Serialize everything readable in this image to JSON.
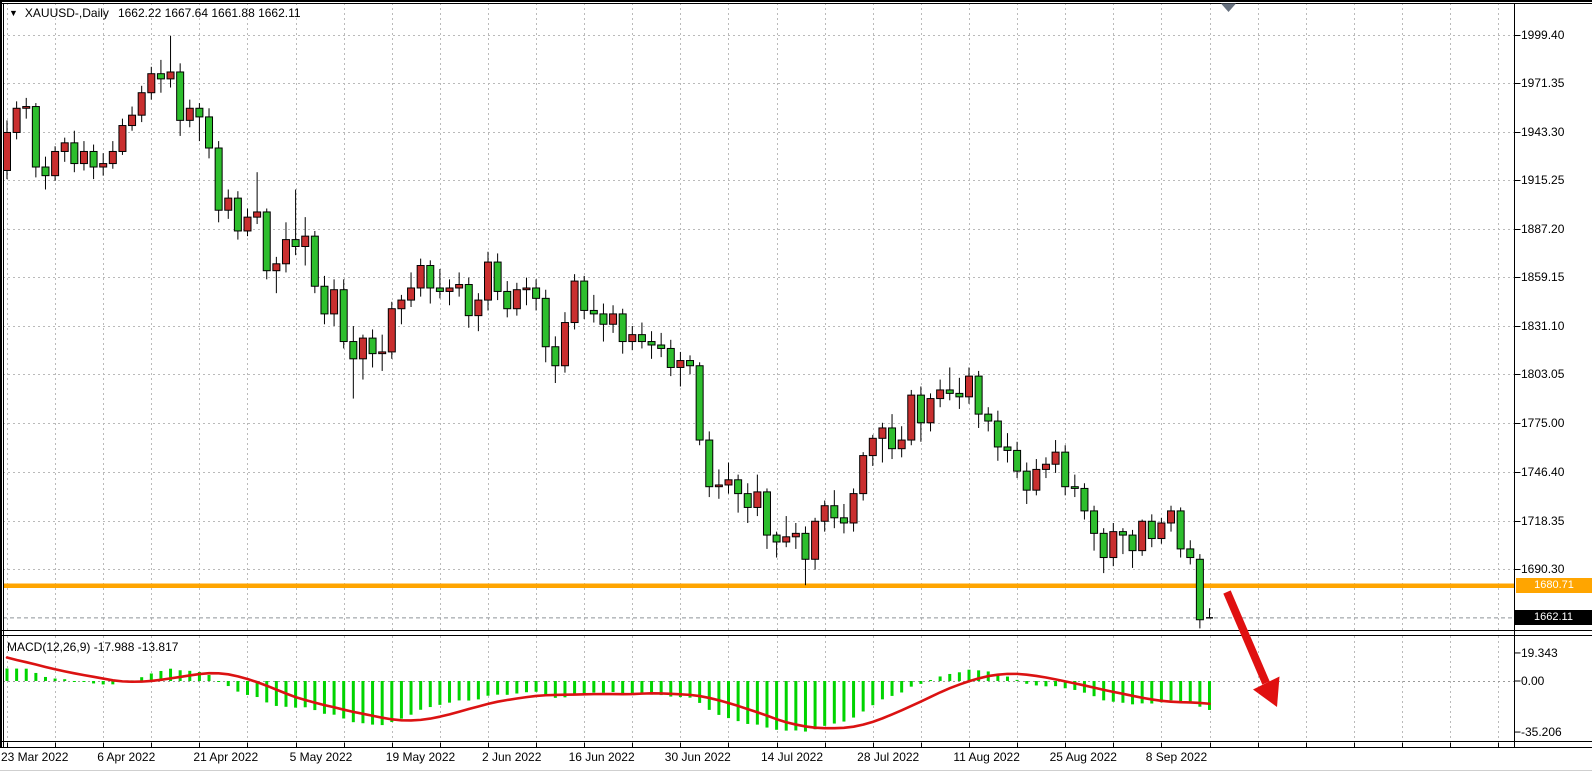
{
  "header": {
    "dropdown_icon": "▼",
    "symbol": "XAUUSD-,Daily",
    "ohlc": "1662.22 1667.64 1661.88 1662.11"
  },
  "price_axis": {
    "labels": [
      "1999.40",
      "1971.35",
      "1943.30",
      "1915.25",
      "1887.20",
      "1859.15",
      "1831.10",
      "1803.05",
      "1775.00",
      "1746.40",
      "1718.35",
      "1690.30"
    ],
    "support_tag": {
      "value": "1680.71",
      "bg": "#FFA500"
    },
    "last_price_tag": {
      "value": "1662.11",
      "bg": "#000000"
    }
  },
  "time_axis": {
    "labels": [
      {
        "text": "23 Mar 2022",
        "index": 0
      },
      {
        "text": "6 Apr 2022",
        "index": 10
      },
      {
        "text": "21 Apr 2022",
        "index": 20
      },
      {
        "text": "5 May 2022",
        "index": 30
      },
      {
        "text": "19 May 2022",
        "index": 40
      },
      {
        "text": "2 Jun 2022",
        "index": 50
      },
      {
        "text": "16 Jun 2022",
        "index": 59
      },
      {
        "text": "30 Jun 2022",
        "index": 69
      },
      {
        "text": "14 Jul 2022",
        "index": 79
      },
      {
        "text": "28 Jul 2022",
        "index": 89
      },
      {
        "text": "11 Aug 2022",
        "index": 99
      },
      {
        "text": "25 Aug 2022",
        "index": 109
      },
      {
        "text": "8 Sep 2022",
        "index": 119
      }
    ]
  },
  "macd_panel": {
    "label": "MACD(12,26,9) -17.988 -13.817",
    "axis_labels": [
      {
        "text": "19.343",
        "value": 19.343
      },
      {
        "text": "0.00",
        "value": 0
      },
      {
        "text": "-35.206",
        "value": -35.206
      }
    ]
  },
  "colors": {
    "bull": "#C92F2F",
    "bear": "#2DBE2D",
    "outline": "#000000",
    "grid": "#BABABA",
    "macd_hist": "#00D400",
    "macd_signal": "#DB1212",
    "support_line": "#FFA500",
    "bid_line": "#8D9399",
    "arrow": "#E01010",
    "shift_marker": "#66707E"
  },
  "chart_data": [
    {
      "type": "candlestick",
      "title": "XAUUSD Daily",
      "timeframe": "Daily",
      "price_axis_ticks": [
        1999.4,
        1971.35,
        1943.3,
        1915.25,
        1887.2,
        1859.15,
        1831.1,
        1803.05,
        1775.0,
        1746.4,
        1718.35,
        1690.3
      ],
      "support_level": 1680.71,
      "last_price": 1662.11,
      "last_bar_ohlc": {
        "open": 1662.22,
        "high": 1667.64,
        "low": 1661.88,
        "close": 1662.11
      },
      "ohlc": [
        [
          1921,
          1950,
          1916,
          1943
        ],
        [
          1943,
          1961,
          1939,
          1957
        ],
        [
          1957,
          1963,
          1951,
          1958
        ],
        [
          1958,
          1960,
          1917,
          1923
        ],
        [
          1923,
          1929,
          1910,
          1918
        ],
        [
          1918,
          1935,
          1915,
          1932
        ],
        [
          1932,
          1940,
          1926,
          1937
        ],
        [
          1937,
          1944,
          1920,
          1925
        ],
        [
          1925,
          1938,
          1921,
          1932
        ],
        [
          1932,
          1936,
          1916,
          1923
        ],
        [
          1923,
          1931,
          1918,
          1925
        ],
        [
          1925,
          1938,
          1922,
          1932
        ],
        [
          1932,
          1951,
          1930,
          1947
        ],
        [
          1947,
          1958,
          1944,
          1953
        ],
        [
          1953,
          1970,
          1949,
          1966
        ],
        [
          1966,
          1981,
          1962,
          1977
        ],
        [
          1977,
          1985,
          1966,
          1974
        ],
        [
          1974,
          1999,
          1969,
          1978
        ],
        [
          1978,
          1983,
          1941,
          1950
        ],
        [
          1950,
          1962,
          1946,
          1957
        ],
        [
          1957,
          1960,
          1938,
          1952
        ],
        [
          1952,
          1957,
          1928,
          1934
        ],
        [
          1934,
          1938,
          1891,
          1898
        ],
        [
          1898,
          1910,
          1893,
          1905
        ],
        [
          1905,
          1909,
          1881,
          1886
        ],
        [
          1886,
          1899,
          1883,
          1894
        ],
        [
          1894,
          1920,
          1890,
          1897
        ],
        [
          1897,
          1899,
          1858,
          1863
        ],
        [
          1863,
          1871,
          1850,
          1867
        ],
        [
          1867,
          1891,
          1862,
          1881
        ],
        [
          1881,
          1910,
          1872,
          1877
        ],
        [
          1877,
          1894,
          1866,
          1883
        ],
        [
          1883,
          1886,
          1850,
          1854
        ],
        [
          1854,
          1860,
          1832,
          1838
        ],
        [
          1838,
          1858,
          1831,
          1852
        ],
        [
          1852,
          1858,
          1818,
          1822
        ],
        [
          1822,
          1831,
          1789,
          1812
        ],
        [
          1812,
          1826,
          1800,
          1824
        ],
        [
          1824,
          1829,
          1807,
          1815
        ],
        [
          1815,
          1826,
          1805,
          1816
        ],
        [
          1816,
          1845,
          1812,
          1841
        ],
        [
          1841,
          1849,
          1832,
          1846
        ],
        [
          1846,
          1862,
          1842,
          1853
        ],
        [
          1853,
          1870,
          1848,
          1866
        ],
        [
          1866,
          1869,
          1844,
          1853
        ],
        [
          1853,
          1864,
          1847,
          1851
        ],
        [
          1851,
          1858,
          1843,
          1853
        ],
        [
          1853,
          1862,
          1848,
          1855
        ],
        [
          1855,
          1859,
          1830,
          1837
        ],
        [
          1837,
          1850,
          1828,
          1846
        ],
        [
          1846,
          1874,
          1840,
          1868
        ],
        [
          1868,
          1873,
          1846,
          1851
        ],
        [
          1851,
          1857,
          1836,
          1841
        ],
        [
          1841,
          1856,
          1837,
          1852
        ],
        [
          1852,
          1859,
          1843,
          1853
        ],
        [
          1853,
          1858,
          1840,
          1847
        ],
        [
          1847,
          1852,
          1810,
          1819
        ],
        [
          1819,
          1825,
          1798,
          1808
        ],
        [
          1808,
          1839,
          1804,
          1833
        ],
        [
          1833,
          1861,
          1829,
          1857
        ],
        [
          1857,
          1860,
          1835,
          1840
        ],
        [
          1840,
          1849,
          1833,
          1838
        ],
        [
          1838,
          1844,
          1822,
          1832
        ],
        [
          1832,
          1843,
          1827,
          1838
        ],
        [
          1838,
          1841,
          1815,
          1822
        ],
        [
          1822,
          1831,
          1817,
          1826
        ],
        [
          1826,
          1833,
          1818,
          1822
        ],
        [
          1822,
          1828,
          1812,
          1820
        ],
        [
          1820,
          1827,
          1813,
          1818
        ],
        [
          1818,
          1823,
          1802,
          1807
        ],
        [
          1807,
          1816,
          1796,
          1811
        ],
        [
          1811,
          1814,
          1803,
          1808
        ],
        [
          1808,
          1810,
          1762,
          1765
        ],
        [
          1765,
          1770,
          1732,
          1738
        ],
        [
          1738,
          1748,
          1731,
          1739
        ],
        [
          1739,
          1752,
          1734,
          1742
        ],
        [
          1742,
          1745,
          1723,
          1734
        ],
        [
          1734,
          1740,
          1717,
          1726
        ],
        [
          1726,
          1745,
          1721,
          1735
        ],
        [
          1735,
          1737,
          1702,
          1710
        ],
        [
          1710,
          1712,
          1697,
          1706
        ],
        [
          1706,
          1721,
          1703,
          1709
        ],
        [
          1709,
          1717,
          1702,
          1711
        ],
        [
          1711,
          1715,
          1681,
          1696
        ],
        [
          1696,
          1720,
          1690,
          1718
        ],
        [
          1718,
          1730,
          1712,
          1727
        ],
        [
          1727,
          1736,
          1714,
          1720
        ],
        [
          1720,
          1728,
          1711,
          1717
        ],
        [
          1717,
          1737,
          1712,
          1734
        ],
        [
          1734,
          1758,
          1730,
          1756
        ],
        [
          1756,
          1768,
          1750,
          1766
        ],
        [
          1766,
          1775,
          1752,
          1772
        ],
        [
          1772,
          1780,
          1754,
          1760
        ],
        [
          1760,
          1773,
          1755,
          1765
        ],
        [
          1765,
          1794,
          1762,
          1791
        ],
        [
          1791,
          1796,
          1764,
          1775
        ],
        [
          1775,
          1792,
          1770,
          1789
        ],
        [
          1789,
          1800,
          1784,
          1794
        ],
        [
          1794,
          1807,
          1788,
          1792
        ],
        [
          1792,
          1801,
          1783,
          1790
        ],
        [
          1790,
          1807,
          1786,
          1802
        ],
        [
          1802,
          1805,
          1772,
          1780
        ],
        [
          1780,
          1784,
          1770,
          1776
        ],
        [
          1776,
          1782,
          1753,
          1761
        ],
        [
          1761,
          1769,
          1752,
          1759
        ],
        [
          1759,
          1764,
          1743,
          1747
        ],
        [
          1747,
          1752,
          1728,
          1736
        ],
        [
          1736,
          1754,
          1733,
          1748
        ],
        [
          1748,
          1755,
          1743,
          1751
        ],
        [
          1751,
          1765,
          1746,
          1758
        ],
        [
          1758,
          1762,
          1733,
          1738
        ],
        [
          1738,
          1745,
          1732,
          1737
        ],
        [
          1737,
          1740,
          1719,
          1724
        ],
        [
          1724,
          1727,
          1701,
          1711
        ],
        [
          1711,
          1714,
          1688,
          1697
        ],
        [
          1697,
          1717,
          1692,
          1712
        ],
        [
          1712,
          1714,
          1699,
          1710
        ],
        [
          1710,
          1713,
          1691,
          1701
        ],
        [
          1701,
          1719,
          1698,
          1718
        ],
        [
          1718,
          1722,
          1703,
          1708
        ],
        [
          1708,
          1720,
          1705,
          1717
        ],
        [
          1717,
          1727,
          1712,
          1724
        ],
        [
          1724,
          1726,
          1697,
          1702
        ],
        [
          1702,
          1707,
          1693,
          1697
        ],
        [
          1696,
          1699,
          1656,
          1661
        ],
        [
          1662.22,
          1667.64,
          1661.88,
          1662.11
        ]
      ]
    },
    {
      "type": "bar",
      "name": "MACD(12,26,9)",
      "derived": "histogram = EMA12(close) - EMA26(close); signal line = SMA9(histogram); computed from the candlestick closes above",
      "last_values": {
        "macd": -17.988,
        "signal": -13.817
      },
      "y_axis_ticks": [
        19.343,
        0.0,
        -35.206
      ],
      "legend_position": "top-left"
    }
  ]
}
